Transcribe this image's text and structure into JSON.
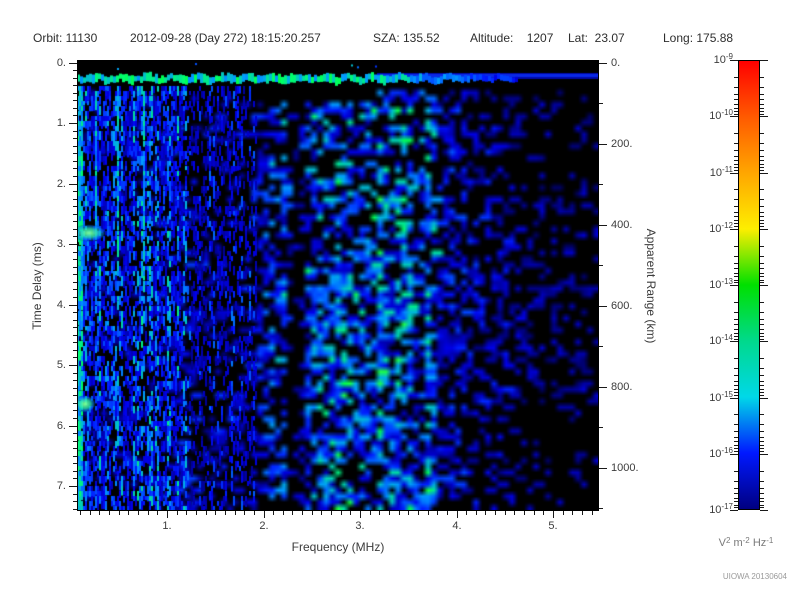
{
  "header": {
    "items": [
      "Orbit: 11130",
      "2012-09-28 (Day 272) 18:15:20.257",
      "SZA: 135.52",
      "Altitude:    1207",
      "Lat:  23.07",
      "Long: 175.88"
    ]
  },
  "chart_data": {
    "type": "heatmap",
    "title": "",
    "xlabel": "Frequency (MHz)",
    "ylabel_left": "Time Delay (ms)",
    "ylabel_right": "Apparent Range (km)",
    "xlim": [
      0.07,
      5.48
    ],
    "ylim_ms": [
      0,
      7.42
    ],
    "ylim_km": [
      0,
      1110
    ],
    "x_ticks": [
      1,
      2,
      3,
      4,
      5
    ],
    "x_tick_labels": [
      "1.",
      "2.",
      "3.",
      "4.",
      "5."
    ],
    "x_minor_step": 0.1,
    "y_ticks_ms": [
      0,
      1,
      2,
      3,
      4,
      5,
      6,
      7
    ],
    "y_tick_labels_ms": [
      "0.",
      "1.",
      "2.",
      "3.",
      "4.",
      "5.",
      "6.",
      "7."
    ],
    "y_minor_step_ms": 0.125,
    "y_ticks_km": [
      0,
      200,
      400,
      600,
      800,
      1000
    ],
    "y_tick_labels_km": [
      "0.",
      "200.",
      "400.",
      "600.",
      "800.",
      "1000."
    ],
    "y_minor_step_km": 100,
    "grid": false,
    "plot_background": "#000000",
    "colorbar": {
      "scale": "log",
      "exponents": [
        -9,
        -10,
        -11,
        -12,
        -13,
        -14,
        -15,
        -16,
        -17
      ],
      "label_base": "10",
      "unit_parts": [
        [
          "V",
          "2"
        ],
        [
          "m",
          "-2"
        ],
        [
          "Hz",
          "-1"
        ]
      ],
      "colors_top_to_bottom": [
        "#ff0000",
        "#ff5a00",
        "#ffa600",
        "#fdee00",
        "#00e000",
        "#00d98c",
        "#00d8e8",
        "#0018ff",
        "#000080"
      ]
    },
    "features": [
      "bright green-cyan horizontal band at ~0.25 ms delay spanning 0.1-4.4 MHz, becoming a plain dark-blue bar above ~4.4 MHz",
      "dense thin vertical green/cyan streaks at low frequency (0.1-1.9 MHz) over all delays - electron plasma oscillation harmonics",
      "bright green patches at the lowest frequency near 2.9 ms and 5.6 ms delay",
      "diffuse blue speckled echo strongest between 1.3 and 4.2 MHz",
      "dark vertical gap near 2.3 MHz",
      "signal fades toward high frequency / long delay (lower right corner mostly black)"
    ]
  },
  "watermark": "UIOWA 20130604",
  "colors": {
    "background": "#ffffff",
    "tick": "#1a1a1a",
    "label": "#3c3c3c",
    "muted": "#7a7a7a"
  }
}
